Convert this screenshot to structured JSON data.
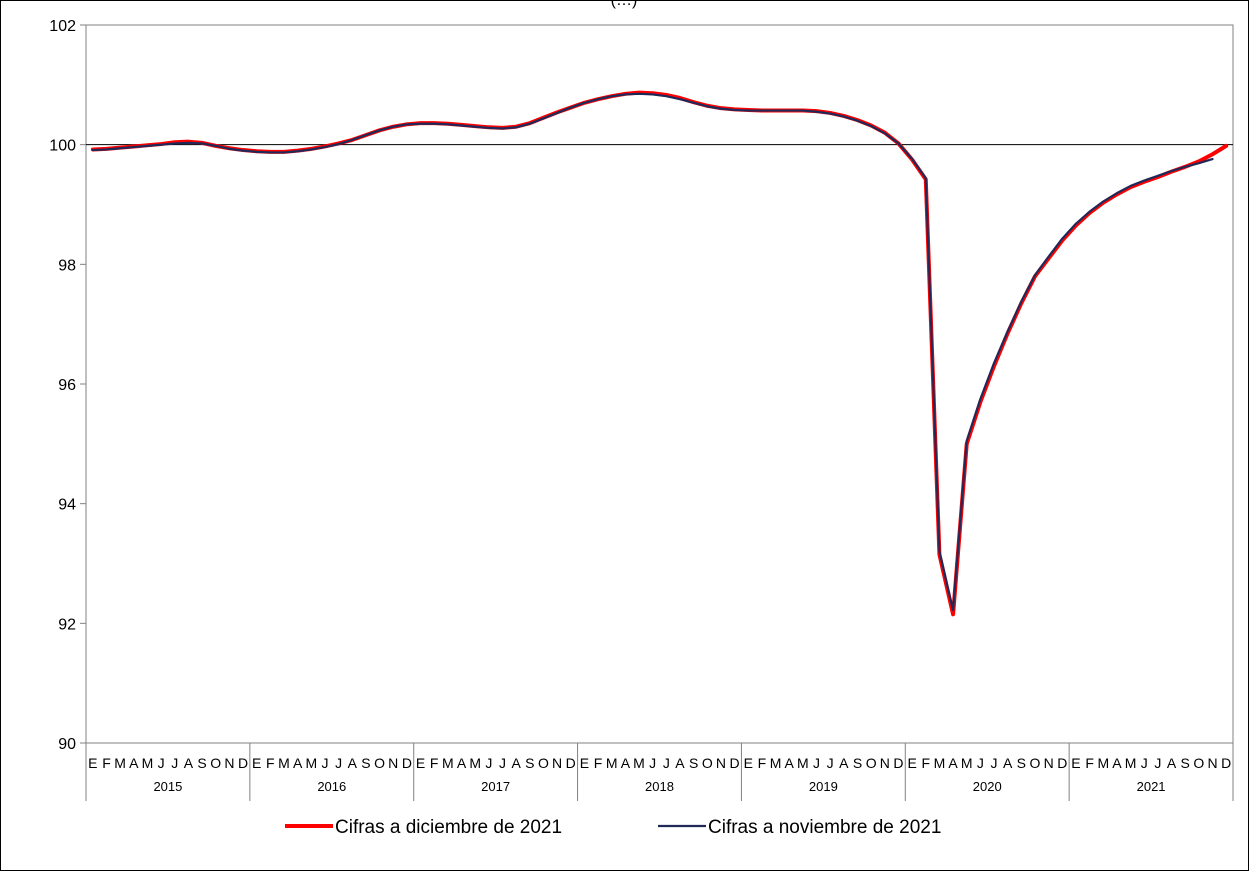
{
  "chart_data": {
    "type": "line",
    "title": "(…)",
    "ylim": [
      90,
      102
    ],
    "yticks": [
      90,
      92,
      94,
      96,
      98,
      100,
      102
    ],
    "reference_line": 100,
    "grid": false,
    "legend_position": "bottom",
    "month_labels": [
      "E",
      "F",
      "M",
      "A",
      "M",
      "J",
      "J",
      "A",
      "S",
      "O",
      "N",
      "D"
    ],
    "years": [
      "2015",
      "2016",
      "2017",
      "2018",
      "2019",
      "2020",
      "2021"
    ],
    "series": [
      {
        "name": "Cifras a diciembre de 2021",
        "color": "#ff0000",
        "values": [
          99.92,
          99.93,
          99.95,
          99.97,
          99.99,
          100.01,
          100.04,
          100.05,
          100.03,
          99.98,
          99.94,
          99.91,
          99.89,
          99.88,
          99.88,
          99.9,
          99.93,
          99.97,
          100.02,
          100.08,
          100.16,
          100.24,
          100.3,
          100.34,
          100.36,
          100.36,
          100.35,
          100.33,
          100.31,
          100.29,
          100.28,
          100.3,
          100.36,
          100.45,
          100.54,
          100.62,
          100.7,
          100.76,
          100.81,
          100.85,
          100.87,
          100.86,
          100.83,
          100.78,
          100.71,
          100.65,
          100.61,
          100.59,
          100.58,
          100.57,
          100.57,
          100.57,
          100.57,
          100.56,
          100.53,
          100.48,
          100.41,
          100.32,
          100.2,
          100.02,
          99.75,
          99.42,
          93.15,
          92.15,
          95.0,
          95.7,
          96.3,
          96.85,
          97.35,
          97.8,
          98.1,
          98.4,
          98.65,
          98.86,
          99.03,
          99.17,
          99.29,
          99.38,
          99.46,
          99.55,
          99.63,
          99.72,
          99.84,
          99.98
        ]
      },
      {
        "name": "Cifras a noviembre de 2021",
        "color": "#1f2a5a",
        "values": [
          99.91,
          99.92,
          99.94,
          99.96,
          99.98,
          100.0,
          100.02,
          100.03,
          100.02,
          99.98,
          99.93,
          99.9,
          99.88,
          99.87,
          99.87,
          99.89,
          99.92,
          99.96,
          100.01,
          100.08,
          100.16,
          100.24,
          100.3,
          100.34,
          100.35,
          100.35,
          100.34,
          100.32,
          100.3,
          100.28,
          100.27,
          100.29,
          100.35,
          100.44,
          100.53,
          100.62,
          100.7,
          100.76,
          100.81,
          100.84,
          100.85,
          100.84,
          100.81,
          100.76,
          100.7,
          100.64,
          100.6,
          100.58,
          100.57,
          100.57,
          100.57,
          100.57,
          100.57,
          100.55,
          100.52,
          100.47,
          100.4,
          100.31,
          100.19,
          100.02,
          99.76,
          99.44,
          93.2,
          92.22,
          95.05,
          95.75,
          96.35,
          96.88,
          97.38,
          97.82,
          98.13,
          98.43,
          98.68,
          98.88,
          99.05,
          99.19,
          99.31,
          99.4,
          99.48,
          99.56,
          99.63,
          99.69,
          99.76
        ]
      }
    ]
  }
}
